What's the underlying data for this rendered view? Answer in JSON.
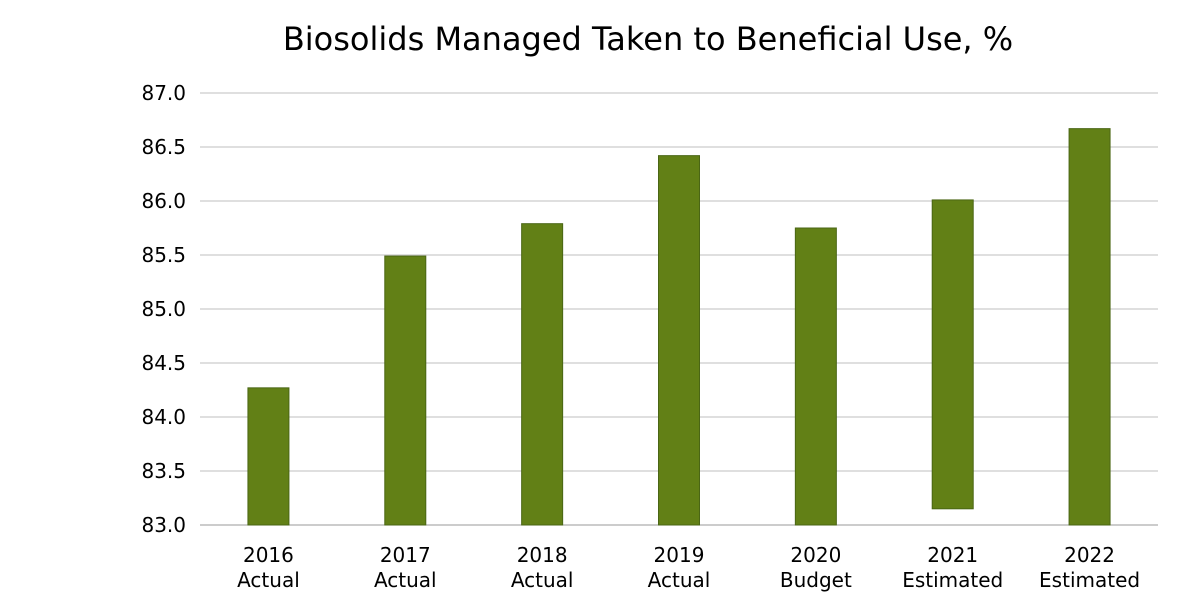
{
  "chart_data": {
    "type": "bar",
    "title": "Biosolids Managed Taken to Beneficial Use, %",
    "xlabel": "",
    "ylabel": "",
    "ylim": [
      83.0,
      87.0
    ],
    "y_ticks": [
      "83.0",
      "83.5",
      "84.0",
      "84.5",
      "85.0",
      "85.5",
      "86.0",
      "86.5",
      "87.0"
    ],
    "grid": true,
    "legend": "none",
    "bar_color": "#628016",
    "categories": [
      {
        "year": "2016",
        "label": "Actual"
      },
      {
        "year": "2017",
        "label": "Actual"
      },
      {
        "year": "2018",
        "label": "Actual"
      },
      {
        "year": "2019",
        "label": "Actual"
      },
      {
        "year": "2020",
        "label": "Budget"
      },
      {
        "year": "2021",
        "label": "Estimated"
      },
      {
        "year": "2022",
        "label": "Estimated"
      }
    ],
    "bars": [
      {
        "low": 83.0,
        "high": 84.27
      },
      {
        "low": 83.0,
        "high": 85.49
      },
      {
        "low": 83.0,
        "high": 85.79
      },
      {
        "low": 83.0,
        "high": 86.42
      },
      {
        "low": 83.0,
        "high": 85.75
      },
      {
        "low": 83.15,
        "high": 86.01
      },
      {
        "low": 83.0,
        "high": 86.67
      }
    ]
  }
}
